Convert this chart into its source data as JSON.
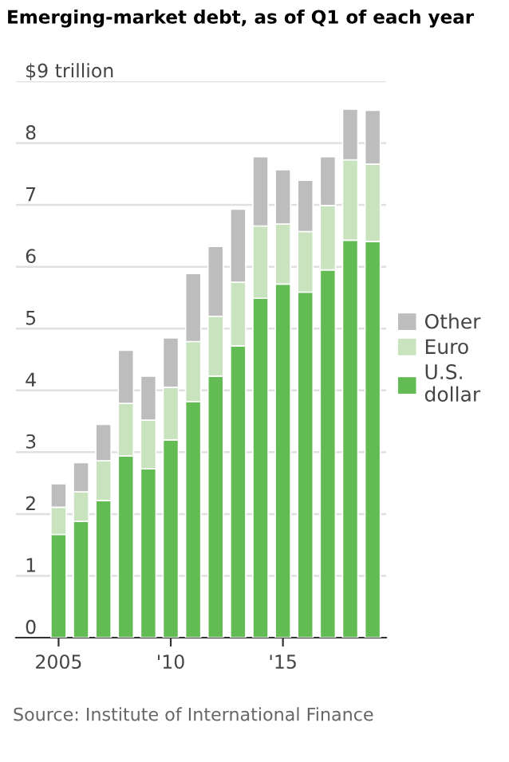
{
  "chart_data": {
    "type": "bar",
    "stacked": true,
    "title": "Emerging-market debt, as of Q1 of each year",
    "x": [
      2005,
      2006,
      2007,
      2008,
      2009,
      2010,
      2011,
      2012,
      2013,
      2014,
      2015,
      2016,
      2017,
      2018,
      2019
    ],
    "series": [
      {
        "name": "U.S.\ndollar",
        "color": "#63bb53",
        "values": [
          1.67,
          1.88,
          2.22,
          2.94,
          2.73,
          3.2,
          3.82,
          4.23,
          4.72,
          5.49,
          5.72,
          5.59,
          5.95,
          6.43,
          6.41
        ]
      },
      {
        "name": "Euro",
        "color": "#c8e3bd",
        "values": [
          0.44,
          0.48,
          0.64,
          0.85,
          0.79,
          0.85,
          0.97,
          0.97,
          1.03,
          1.17,
          0.97,
          0.98,
          1.04,
          1.3,
          1.25
        ]
      },
      {
        "name": "Other",
        "color": "#bdbdbd",
        "values": [
          0.38,
          0.47,
          0.59,
          0.86,
          0.71,
          0.8,
          1.1,
          1.13,
          1.18,
          1.12,
          0.88,
          0.83,
          0.79,
          0.82,
          0.87
        ]
      }
    ],
    "xlim": [
      2003.1,
      2019.6
    ],
    "xticks": [
      2005,
      {
        "value": 2010,
        "label": "'10"
      },
      {
        "value": 2015,
        "label": "'15"
      }
    ],
    "ylim": [
      0,
      9
    ],
    "yticks": [
      0,
      1,
      2,
      3,
      4,
      5,
      6,
      7,
      8,
      {
        "value": 9,
        "label": "$9 trillion"
      }
    ],
    "grid": "y",
    "legend": "right",
    "annotations": [
      "Source: Institute of International Finance"
    ]
  }
}
